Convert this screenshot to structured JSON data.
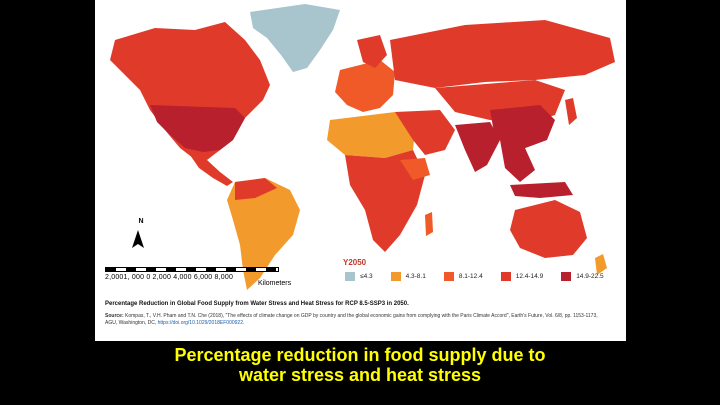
{
  "map": {
    "north_label": "N",
    "scale_ticks": "2,0001, 000  0      2,000   4,000   6,000   8,000",
    "scale_unit": "Kilometers",
    "colors": {
      "water": "#ffffff",
      "c1": "#a8c4cc",
      "c2": "#f39a2c",
      "c3": "#ef5a28",
      "c4": "#e03b2a",
      "c5": "#b8202e",
      "border": "#ffffff"
    }
  },
  "legend": {
    "title": "Y2050",
    "items": [
      {
        "label": "≤4.3",
        "color": "#a8c4cc"
      },
      {
        "label": "4.3-8.1",
        "color": "#f39a2c"
      },
      {
        "label": "8.1-12.4",
        "color": "#ef5a28"
      },
      {
        "label": "12.4-14.9",
        "color": "#e03b2a"
      },
      {
        "label": "14.9-22.5",
        "color": "#b8202e"
      }
    ]
  },
  "caption": {
    "title": "Percentage Reduction in Global Food Supply from Water Stress and Heat Stress for RCP 8.5-SSP3 in 2050.",
    "source_label": "Source:",
    "source_text": " Kompas, T., V.H. Pham and T.N. Che (2018), \"The effects of climate change on GDP by country and the global economic gains from complying with the Paris Climate Accord\", Earth's Future, Vol. 6/8, pp. 1153-1173, AGU, Washington, DC, ",
    "source_link": "https://doi.org/10.1029/2018EF000922."
  },
  "subtitle": {
    "line1": "Percentage reduction in food supply due to",
    "line2": "water stress and heat stress"
  }
}
